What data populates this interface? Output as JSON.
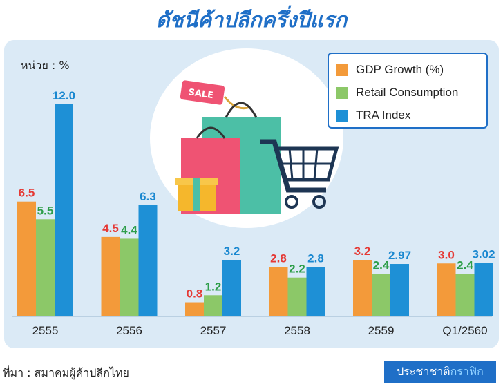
{
  "header": {
    "title": "ดัชนีค้าปลีกครึ่งปีแรก"
  },
  "unit_label": "หน่วย : %",
  "footer": {
    "source": "ที่มา : สมาคมผู้ค้าปลีกไทย",
    "brand_a": "ประชาชาติ",
    "brand_b": "กราฟิก"
  },
  "illustration": {
    "sale_tag": "SALE"
  },
  "colors": {
    "gdp": "#f39a3a",
    "retail": "#8cc868",
    "tra": "#1e90d6",
    "gdp_label": "#e53935",
    "retail_label": "#2e9e4a",
    "tra_label": "#1a88d0",
    "title": "#1f6fc7",
    "panel": "#dbeaf6"
  },
  "chart_data": {
    "type": "bar",
    "categories": [
      "2555",
      "2556",
      "2557",
      "2558",
      "2559",
      "Q1/2560"
    ],
    "series": [
      {
        "name": "GDP Growth (%)",
        "values": [
          6.5,
          4.5,
          0.8,
          2.8,
          3.2,
          3.0
        ],
        "labels": [
          "6.5",
          "4.5",
          "0.8",
          "2.8",
          "3.2",
          "3.0"
        ]
      },
      {
        "name": "Retail Consumption",
        "values": [
          5.5,
          4.4,
          1.2,
          2.2,
          2.4,
          2.4
        ],
        "labels": [
          "5.5",
          "4.4",
          "1.2",
          "2.2",
          "2.4",
          "2.4"
        ]
      },
      {
        "name": "TRA Index",
        "values": [
          12.0,
          6.3,
          3.2,
          2.8,
          2.97,
          3.02
        ],
        "labels": [
          "12.0",
          "6.3",
          "3.2",
          "2.8",
          "2.97",
          "3.02"
        ]
      }
    ],
    "ylim": [
      0,
      12
    ],
    "legend_position": "top-right",
    "grid": false
  }
}
